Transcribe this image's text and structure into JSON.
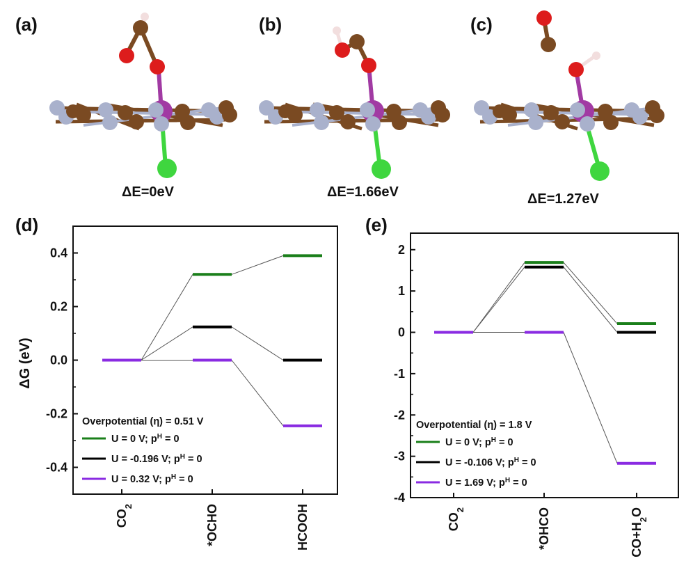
{
  "panels_top": [
    {
      "label": "(a)",
      "energy": "ΔE=0eV"
    },
    {
      "label": "(b)",
      "energy": "ΔE=1.66eV"
    },
    {
      "label": "(c)",
      "energy": "ΔE=1.27eV"
    }
  ],
  "atom_colors": {
    "C": "#7a4a22",
    "N": "#a9b1cc",
    "O": "#dd1c1c",
    "H": "#f2dede",
    "Metal": "#a13aa3",
    "Cl": "#3fd63f"
  },
  "chart_data": [
    {
      "type": "line",
      "panel_label": "(d)",
      "title": "",
      "ylabel": "ΔG (eV)",
      "xlabel": "",
      "categories": [
        "CO2",
        "*OCHO",
        "HCOOH"
      ],
      "ylim": [
        -0.5,
        0.5
      ],
      "yticks": [
        "0.4",
        "0.2",
        "0.0",
        "-0.2",
        "-0.4"
      ],
      "ytick_values": [
        0.4,
        0.2,
        0.0,
        -0.2,
        -0.4
      ],
      "legend_title": "Overpotential (η) = 0.51 V",
      "legend_position": "bottom-left",
      "series": [
        {
          "name": "U = 0 V; pH = 0",
          "name_main": "U = 0 V; p",
          "name_sup": "H",
          "name_tail": " = 0",
          "color": "#1a7f1a",
          "values": [
            0.0,
            0.32,
            0.39
          ]
        },
        {
          "name": "U = -0.196 V; pH = 0",
          "name_main": "U = -0.196 V; p",
          "name_sup": "H",
          "name_tail": " = 0",
          "color": "#000000",
          "values": [
            0.0,
            0.124,
            0.0
          ]
        },
        {
          "name": "U = 0.32 V; pH = 0",
          "name_main": "U = 0.32 V; p",
          "name_sup": "H",
          "name_tail": " = 0",
          "color": "#8a2be2",
          "values": [
            0.0,
            0.0,
            -0.245
          ]
        }
      ]
    },
    {
      "type": "line",
      "panel_label": "(e)",
      "title": "",
      "ylabel": "",
      "xlabel": "",
      "categories": [
        "CO2",
        "*OHCO",
        "CO+H2O"
      ],
      "ylim": [
        -4,
        2.4
      ],
      "yticks": [
        "2",
        "1",
        "0",
        "-1",
        "-2",
        "-3",
        "-4"
      ],
      "ytick_values": [
        2,
        1,
        0,
        -1,
        -2,
        -3,
        -4
      ],
      "legend_title": "Overpotential (η) = 1.8 V",
      "legend_position": "bottom-left",
      "series": [
        {
          "name": "U = 0 V; pH = 0",
          "name_main": "U = 0 V; p",
          "name_sup": "H",
          "name_tail": " = 0",
          "color": "#1a7f1a",
          "values": [
            0.0,
            1.69,
            0.21
          ]
        },
        {
          "name": "U = -0.106 V; pH = 0",
          "name_main": "U = -0.106 V; p",
          "name_sup": "H",
          "name_tail": " = 0",
          "color": "#000000",
          "values": [
            0.0,
            1.58,
            0.0
          ]
        },
        {
          "name": "U = 1.69 V; pH = 0",
          "name_main": "U = 1.69 V; p",
          "name_sup": "H",
          "name_tail": " = 0",
          "color": "#8a2be2",
          "values": [
            0.0,
            0.0,
            -3.17
          ]
        }
      ]
    }
  ]
}
